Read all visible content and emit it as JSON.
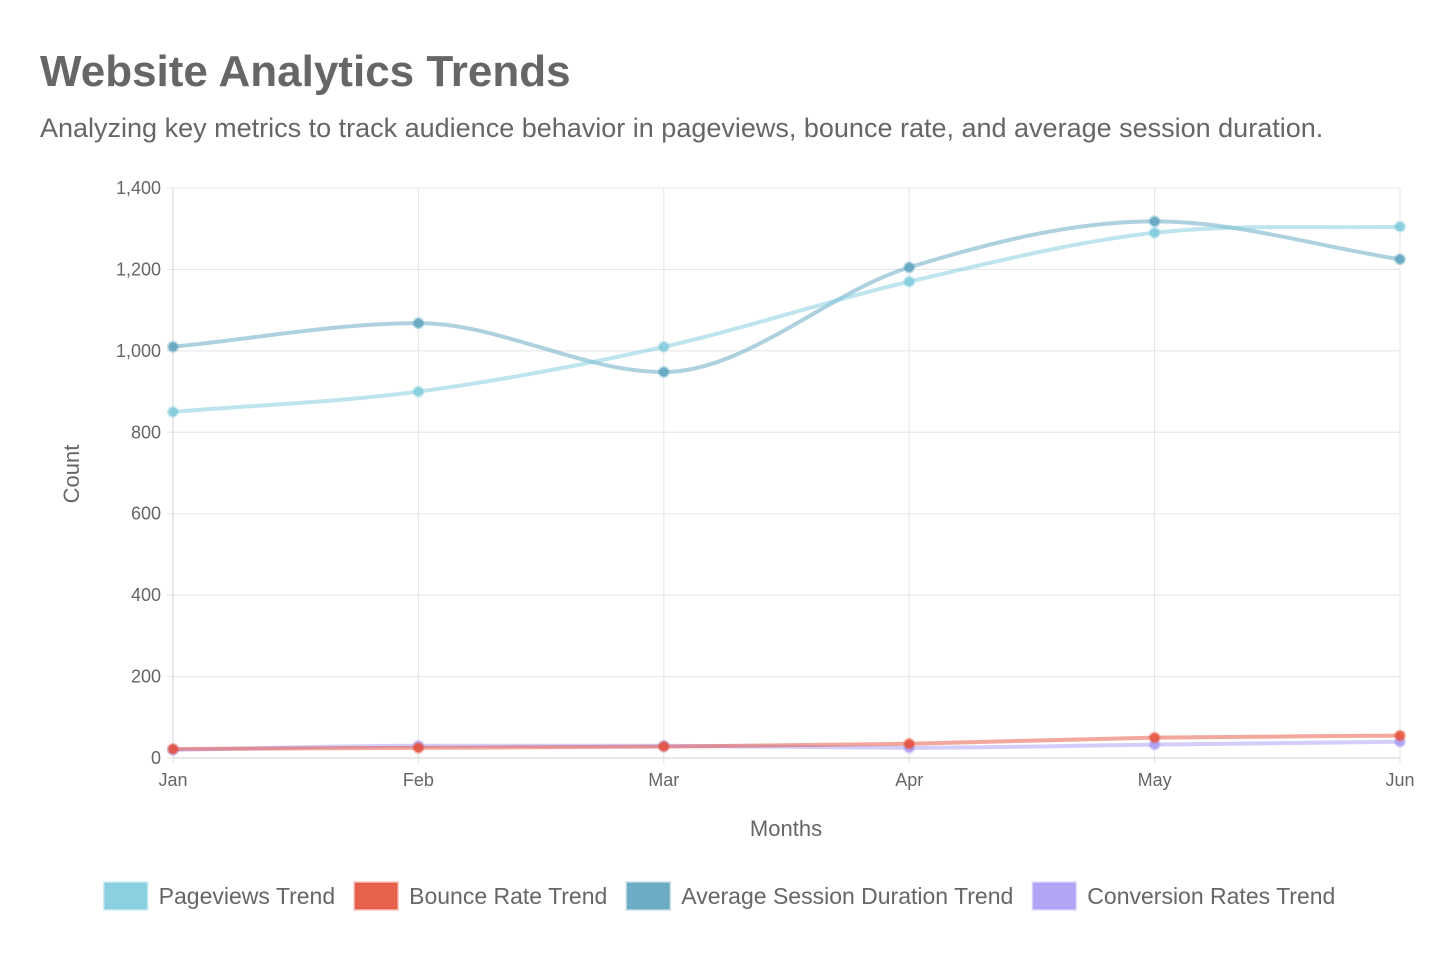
{
  "chart_data": {
    "type": "line",
    "title": "Website Analytics Trends",
    "subtitle": "Analyzing key metrics to track audience behavior in pageviews, bounce rate, and average session duration.",
    "xlabel": "Months",
    "ylabel": "Count",
    "categories": [
      "Jan",
      "Feb",
      "Mar",
      "Apr",
      "May",
      "Jun"
    ],
    "ylim": [
      0,
      1400
    ],
    "yticks": [
      0,
      200,
      400,
      600,
      800,
      1000,
      1200,
      1400
    ],
    "ytick_labels": [
      "0",
      "200",
      "400",
      "600",
      "800",
      "1,000",
      "1,200",
      "1,400"
    ],
    "grid": true,
    "legend_position": "bottom",
    "series": [
      {
        "name": "Pageviews Trend",
        "values": [
          850,
          900,
          1010,
          1170,
          1290,
          1305
        ],
        "color": "#7ecbdd"
      },
      {
        "name": "Bounce Rate Trend",
        "values": [
          22,
          25,
          28,
          35,
          50,
          55
        ],
        "color": "#e6513b"
      },
      {
        "name": "Average Session Duration Trend",
        "values": [
          1010,
          1068,
          948,
          1205,
          1318,
          1225
        ],
        "color": "#5da3bf"
      },
      {
        "name": "Conversion Rates Trend",
        "values": [
          20,
          30,
          30,
          25,
          33,
          40
        ],
        "color": "#a89cf5"
      }
    ],
    "series_draw_order": [
      2,
      0,
      3,
      1
    ]
  }
}
